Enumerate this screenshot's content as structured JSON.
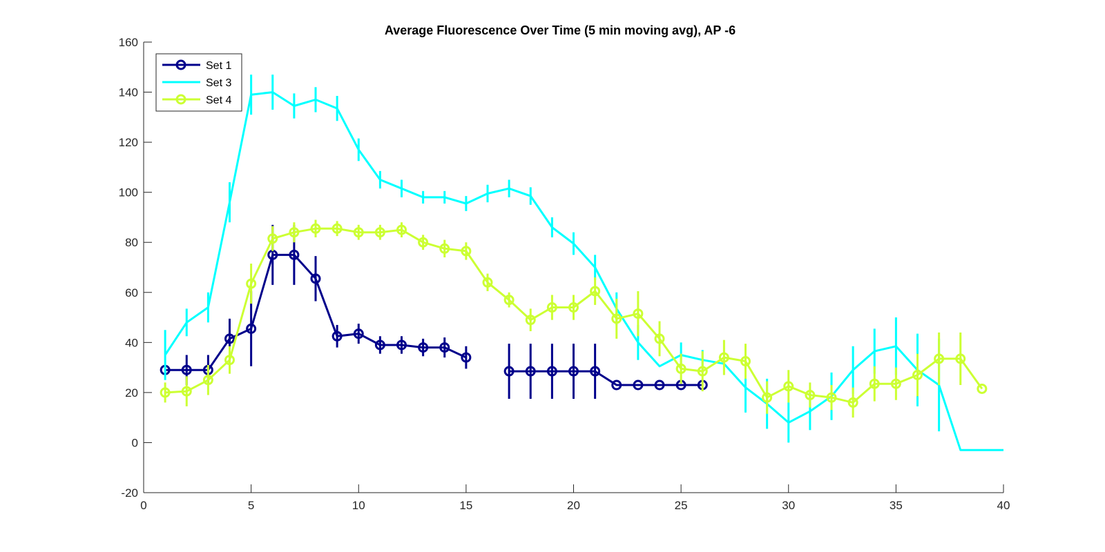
{
  "chart_data": {
    "type": "line",
    "title": "Average Fluorescence Over Time (5 min moving avg), AP -6",
    "xlabel": "",
    "ylabel": "",
    "xlim": [
      0,
      40
    ],
    "ylim": [
      -20,
      160
    ],
    "xticks": [
      0,
      5,
      10,
      15,
      20,
      25,
      30,
      35,
      40
    ],
    "yticks": [
      -20,
      0,
      20,
      40,
      60,
      80,
      100,
      120,
      140,
      160
    ],
    "grid": false,
    "legend_position": "top-left",
    "series": [
      {
        "name": "Set 1",
        "color": "#00008B",
        "marker": "circle",
        "segments": [
          {
            "x": [
              1,
              2,
              3,
              4,
              5,
              6,
              7,
              8,
              9,
              10,
              11,
              12,
              13,
              14,
              15
            ],
            "y": [
              29,
              29,
              29,
              41.5,
              45.5,
              75,
              75,
              65.5,
              42.5,
              43.5,
              39,
              39,
              38,
              38,
              34
            ],
            "err": [
              0,
              6,
              6,
              8,
              15,
              12,
              12,
              9,
              4.5,
              4,
              3.5,
              3.5,
              3.5,
              4,
              4.5
            ]
          },
          {
            "x": [
              17,
              18,
              19,
              20,
              21,
              22,
              23,
              24,
              25,
              26
            ],
            "y": [
              28.5,
              28.5,
              28.5,
              28.5,
              28.5,
              23,
              23,
              23,
              23,
              23
            ],
            "err": [
              11,
              11,
              11,
              11,
              11,
              0,
              0,
              0,
              0,
              0
            ]
          }
        ]
      },
      {
        "name": "Set 3",
        "color": "#00FFFF",
        "marker": "none",
        "segments": [
          {
            "x": [
              1,
              2,
              3,
              4,
              5,
              6,
              7,
              8,
              9,
              10,
              11,
              12,
              13,
              14,
              15,
              16,
              17,
              18,
              19,
              20,
              21,
              22,
              23,
              24,
              25,
              26,
              27,
              28,
              29,
              30,
              31,
              32,
              33,
              34,
              35,
              36,
              37,
              38,
              39,
              40
            ],
            "y": [
              35,
              48,
              54,
              96,
              139,
              140,
              134.5,
              137,
              133.5,
              117,
              105,
              101.5,
              98,
              98,
              95.5,
              99.5,
              101.5,
              98.5,
              86,
              79.5,
              70,
              53.5,
              40,
              30.5,
              35,
              33,
              31.5,
              22,
              15.5,
              8,
              12.5,
              18.5,
              29,
              36.5,
              38.5,
              29,
              23,
              -3,
              -3,
              -3
            ],
            "err": [
              10,
              5.5,
              6,
              8,
              8,
              7,
              5,
              5,
              5,
              4.5,
              3.5,
              3.5,
              2.5,
              2.5,
              3,
              3.5,
              3.5,
              3.5,
              4,
              4.5,
              5,
              6.5,
              7,
              0,
              5,
              4,
              0,
              10,
              10,
              8,
              7.5,
              9.5,
              9.5,
              9,
              11.5,
              14.5,
              18.5,
              0,
              0,
              0
            ]
          }
        ]
      },
      {
        "name": "Set 4",
        "color": "#CCFF33",
        "marker": "circle",
        "segments": [
          {
            "x": [
              1,
              2,
              3,
              4,
              5,
              6,
              7,
              8,
              9,
              10,
              11,
              12,
              13,
              14,
              15,
              16,
              17,
              18,
              19,
              20,
              21,
              22,
              23,
              24,
              25,
              26,
              27,
              28,
              29,
              30,
              31,
              32,
              33,
              34,
              35,
              36,
              37,
              38,
              39
            ],
            "y": [
              20,
              20.5,
              25,
              33,
              63.5,
              81.5,
              84,
              85.5,
              85.5,
              84,
              84,
              85,
              80,
              77.5,
              76.5,
              64,
              57,
              49,
              54,
              54,
              60.5,
              49.5,
              51.5,
              41.5,
              29.5,
              28.5,
              34,
              32.5,
              18,
              22.5,
              19,
              18,
              16,
              23.5,
              23.5,
              27,
              33.5,
              33.5,
              21.5
            ],
            "err": [
              4,
              6,
              6,
              5.5,
              8,
              5,
              4,
              3.5,
              3,
              3,
              3,
              3,
              3,
              3.5,
              3.5,
              3.5,
              3,
              4.5,
              5,
              5,
              5.5,
              8,
              9,
              7,
              6,
              8,
              7,
              7,
              6.5,
              6.5,
              5,
              5,
              6,
              7,
              6.5,
              8.5,
              10.5,
              10.5,
              0
            ]
          }
        ]
      }
    ]
  }
}
